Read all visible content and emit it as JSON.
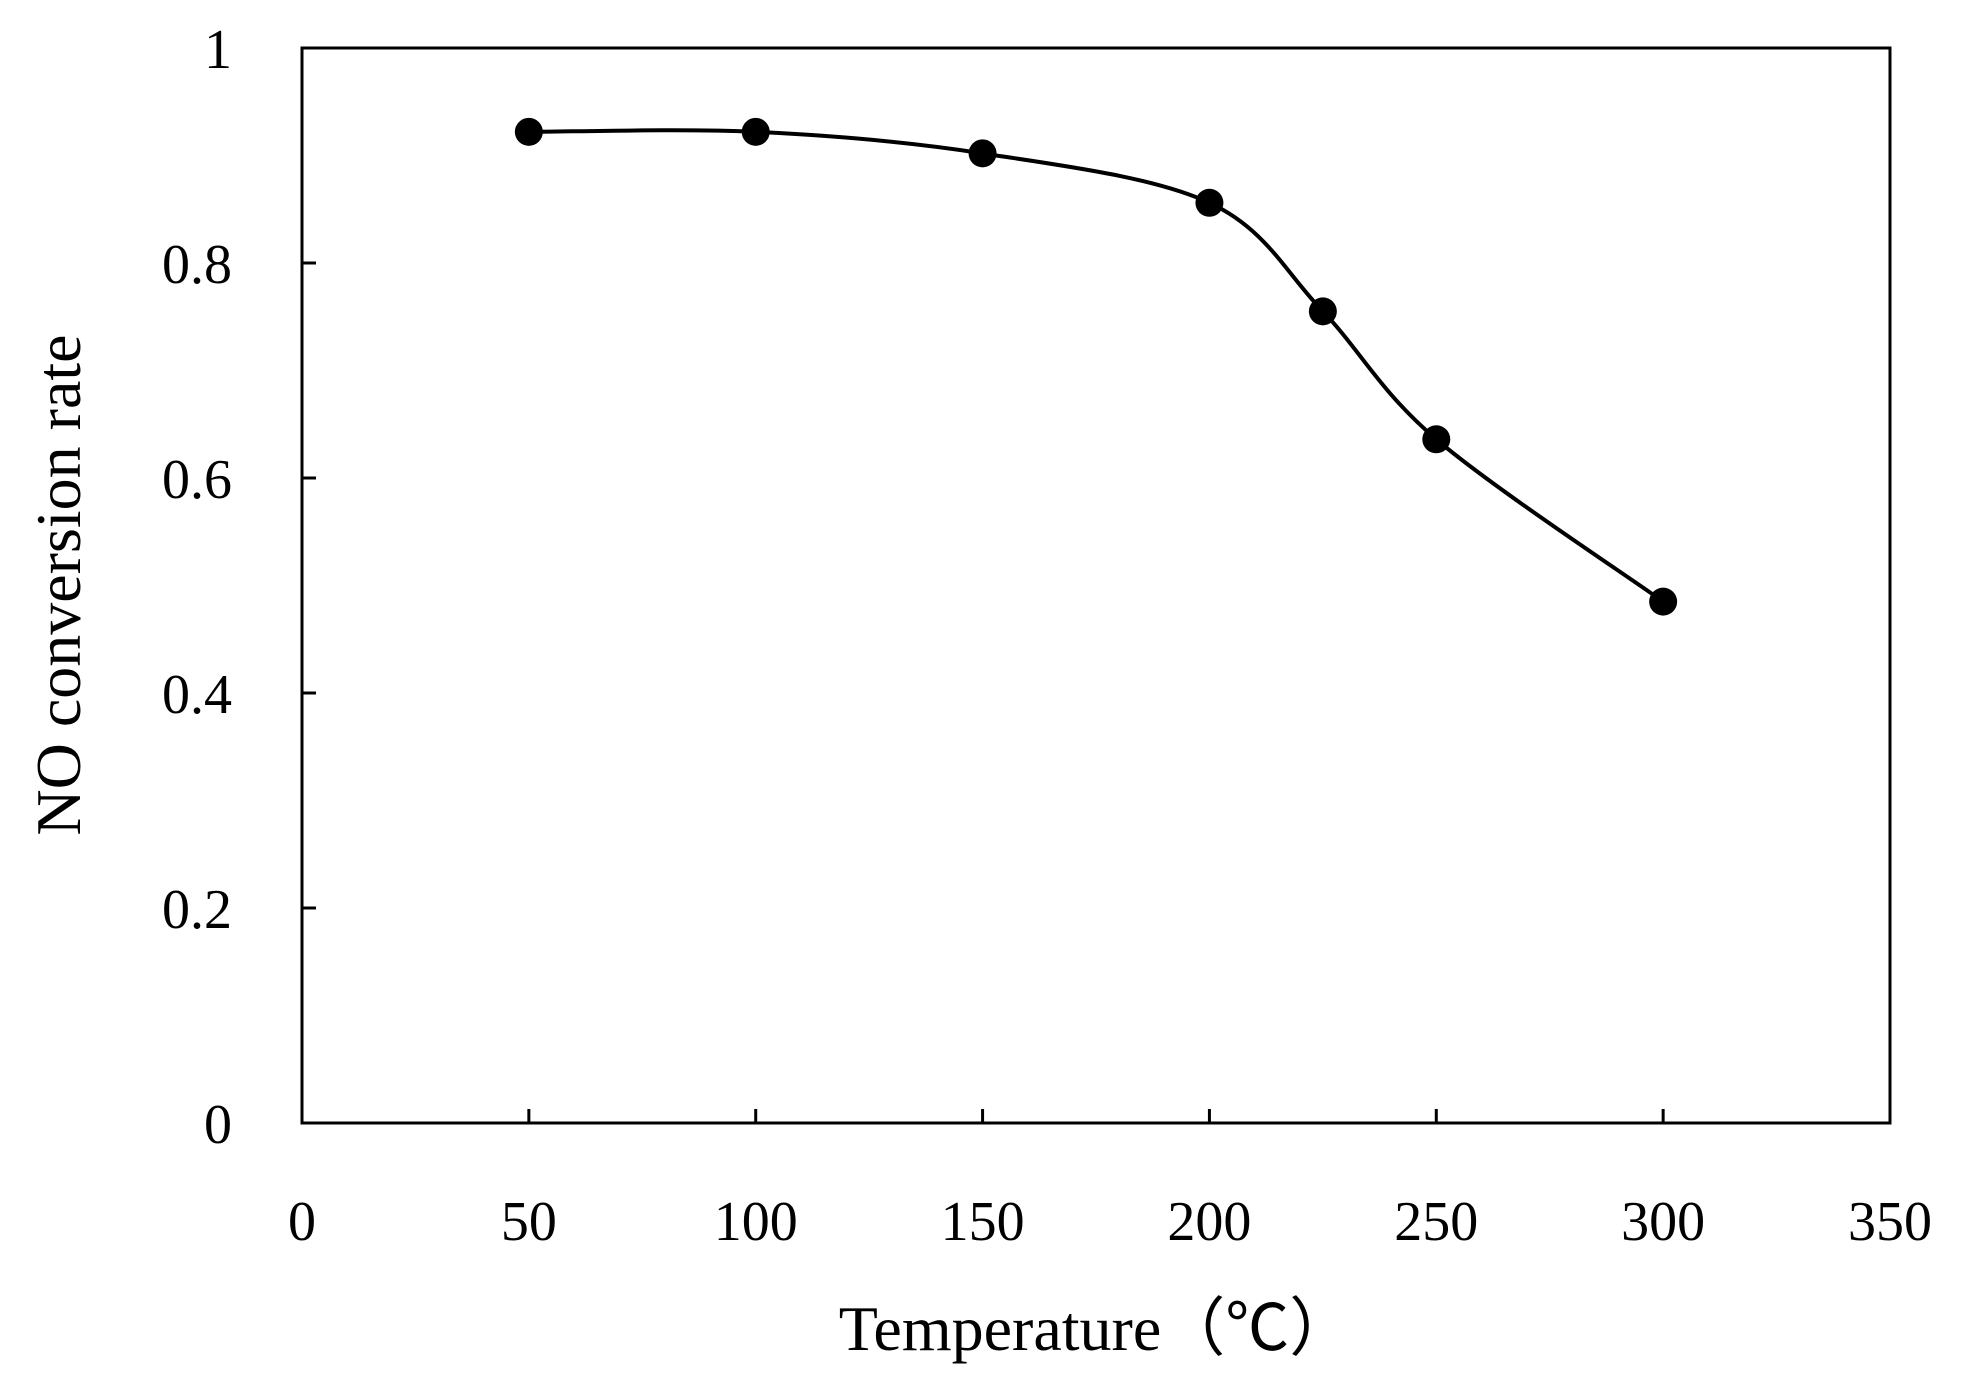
{
  "chart_data": {
    "type": "line",
    "title": "",
    "xlabel": "Temperature（℃）",
    "ylabel": "NO conversion rate",
    "xlim": [
      0,
      350
    ],
    "ylim": [
      0,
      1
    ],
    "x_ticks": [
      "0",
      "50",
      "100",
      "150",
      "200",
      "250",
      "300",
      "350"
    ],
    "y_ticks": [
      "0",
      "0.2",
      "0.4",
      "0.6",
      "0.8",
      "1"
    ],
    "grid": false,
    "legend": "none",
    "smooth": true,
    "marker": "filled-circle",
    "colors": {
      "line": "#000000",
      "marker": "#000000",
      "frame": "#000000"
    },
    "series": [
      {
        "x": [
          50,
          100,
          150,
          200,
          225,
          250,
          300
        ],
        "y": [
          0.922,
          0.922,
          0.902,
          0.856,
          0.755,
          0.636,
          0.485
        ]
      }
    ]
  }
}
